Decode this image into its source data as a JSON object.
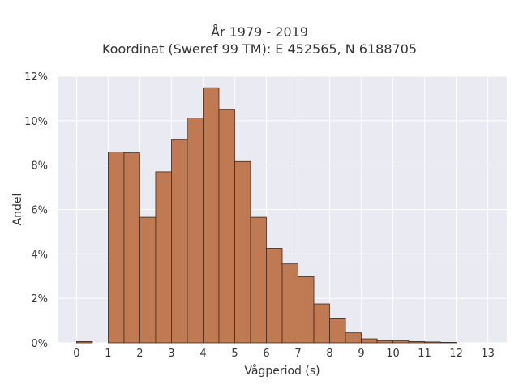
{
  "chart_data": {
    "type": "bar",
    "title_lines": [
      "År 1979 - 2019",
      "Koordinat (Sweref 99 TM): E 452565, N 6188705"
    ],
    "xlabel": "Vågperiod (s)",
    "ylabel": "Andel",
    "bin_width": 0.5,
    "bins": [
      {
        "x0": 0.0,
        "value": 0.0006
      },
      {
        "x0": 1.0,
        "value": 0.0859
      },
      {
        "x0": 1.5,
        "value": 0.0855
      },
      {
        "x0": 2.0,
        "value": 0.0565
      },
      {
        "x0": 2.5,
        "value": 0.077
      },
      {
        "x0": 3.0,
        "value": 0.0915
      },
      {
        "x0": 3.5,
        "value": 0.1012
      },
      {
        "x0": 4.0,
        "value": 0.1148
      },
      {
        "x0": 4.5,
        "value": 0.105
      },
      {
        "x0": 5.0,
        "value": 0.0816
      },
      {
        "x0": 5.5,
        "value": 0.0565
      },
      {
        "x0": 6.0,
        "value": 0.0425
      },
      {
        "x0": 6.5,
        "value": 0.0355
      },
      {
        "x0": 7.0,
        "value": 0.0298
      },
      {
        "x0": 7.5,
        "value": 0.0175
      },
      {
        "x0": 8.0,
        "value": 0.0108
      },
      {
        "x0": 8.5,
        "value": 0.0045
      },
      {
        "x0": 9.0,
        "value": 0.0018
      },
      {
        "x0": 9.5,
        "value": 0.001
      },
      {
        "x0": 10.0,
        "value": 0.0009
      },
      {
        "x0": 10.5,
        "value": 0.0006
      },
      {
        "x0": 11.0,
        "value": 0.0004
      },
      {
        "x0": 11.5,
        "value": 0.0002
      }
    ],
    "xlim": [
      -0.6,
      13.6
    ],
    "ylim": [
      0,
      0.12
    ],
    "x_ticks": [
      0,
      1,
      2,
      3,
      4,
      5,
      6,
      7,
      8,
      9,
      10,
      11,
      12,
      13
    ],
    "x_tick_labels": [
      "0",
      "1",
      "2",
      "3",
      "4",
      "5",
      "6",
      "7",
      "8",
      "9",
      "10",
      "11",
      "12",
      "13"
    ],
    "y_ticks": [
      0,
      0.02,
      0.04,
      0.06,
      0.08,
      0.1,
      0.12
    ],
    "y_tick_labels": [
      "0%",
      "2%",
      "4%",
      "6%",
      "8%",
      "10%",
      "12%"
    ],
    "grid": true,
    "colors": {
      "bar_fill": "#bf7a53",
      "bar_edge": "#3d2a1e",
      "plot_background": "#eaeaf2",
      "grid": "#ffffff"
    }
  }
}
